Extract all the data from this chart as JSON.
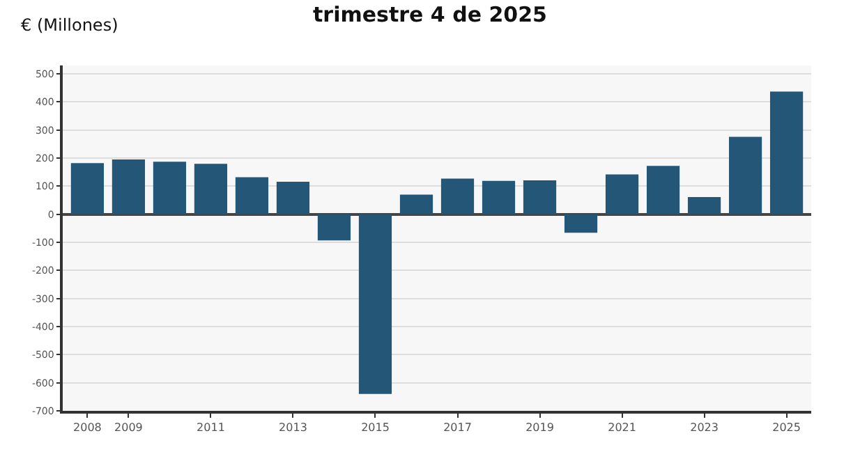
{
  "chart_data": {
    "type": "bar",
    "title": "trimestre 4 de 2025",
    "ylabel": "€ (Millones)",
    "categories": [
      "2008",
      "2009",
      null,
      "2011",
      null,
      "2013",
      null,
      "2015",
      null,
      "2017",
      null,
      "2019",
      null,
      "2021",
      null,
      "2023",
      null,
      "2025"
    ],
    "values": [
      182,
      195,
      187,
      180,
      132,
      116,
      -93,
      -640,
      70,
      127,
      119,
      121,
      -66,
      142,
      172,
      61,
      276,
      437
    ],
    "color": "#245678",
    "ylim": [
      -700,
      530
    ],
    "yticks": [
      -700,
      -600,
      -500,
      -400,
      -300,
      -200,
      -100,
      0,
      100,
      200,
      300,
      400,
      500
    ],
    "grid": "y"
  }
}
